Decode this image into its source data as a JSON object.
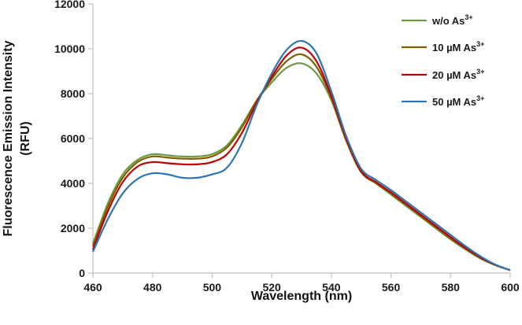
{
  "chart_data": {
    "type": "line",
    "title": "",
    "xlabel": "Wavelength (nm)",
    "ylabel_lines": [
      "Fluorescence Emission Intensity",
      "(RFU)"
    ],
    "xlim": [
      460,
      600
    ],
    "ylim": [
      0,
      12000
    ],
    "xticks": [
      "460",
      "480",
      "500",
      "520",
      "540",
      "560",
      "580",
      "600"
    ],
    "yticks": [
      "0",
      "2000",
      "4000",
      "6000",
      "8000",
      "10000",
      "12000"
    ],
    "legend_position": "top-right",
    "x": [
      460,
      465,
      470,
      475,
      480,
      485,
      490,
      495,
      500,
      505,
      510,
      515,
      520,
      525,
      530,
      535,
      540,
      545,
      550,
      555,
      560,
      565,
      570,
      575,
      580,
      585,
      590,
      595,
      600
    ],
    "series": [
      {
        "name": "w/o As",
        "sup": "3+",
        "color": "#6e9a44",
        "values": [
          1300,
          3100,
          4400,
          5050,
          5300,
          5250,
          5200,
          5200,
          5300,
          5700,
          6600,
          7700,
          8500,
          9150,
          9350,
          8900,
          7700,
          5900,
          4500,
          4000,
          3500,
          3000,
          2500,
          2000,
          1500,
          1050,
          650,
          350,
          130
        ]
      },
      {
        "name": "10 µM As",
        "sup": "3+",
        "color": "#7f6000",
        "values": [
          1200,
          2950,
          4250,
          4950,
          5200,
          5150,
          5100,
          5100,
          5200,
          5600,
          6500,
          7700,
          8650,
          9450,
          9750,
          9200,
          7800,
          5900,
          4500,
          4000,
          3550,
          3050,
          2550,
          2050,
          1550,
          1100,
          680,
          360,
          130
        ]
      },
      {
        "name": "20 µM As",
        "sup": "3+",
        "color": "#c00000",
        "values": [
          1050,
          2750,
          4050,
          4750,
          4950,
          4900,
          4850,
          4850,
          4950,
          5300,
          6250,
          7600,
          8750,
          9700,
          10050,
          9450,
          7900,
          6000,
          4550,
          4050,
          3600,
          3100,
          2600,
          2100,
          1600,
          1120,
          700,
          370,
          130
        ]
      },
      {
        "name": "50 µM As",
        "sup": "3+",
        "color": "#2e75b6",
        "values": [
          950,
          2400,
          3550,
          4200,
          4450,
          4400,
          4250,
          4250,
          4400,
          4700,
          5800,
          7500,
          8900,
          9950,
          10350,
          9800,
          8100,
          6100,
          4650,
          4150,
          3700,
          3200,
          2700,
          2200,
          1700,
          1200,
          750,
          380,
          130
        ]
      }
    ]
  }
}
